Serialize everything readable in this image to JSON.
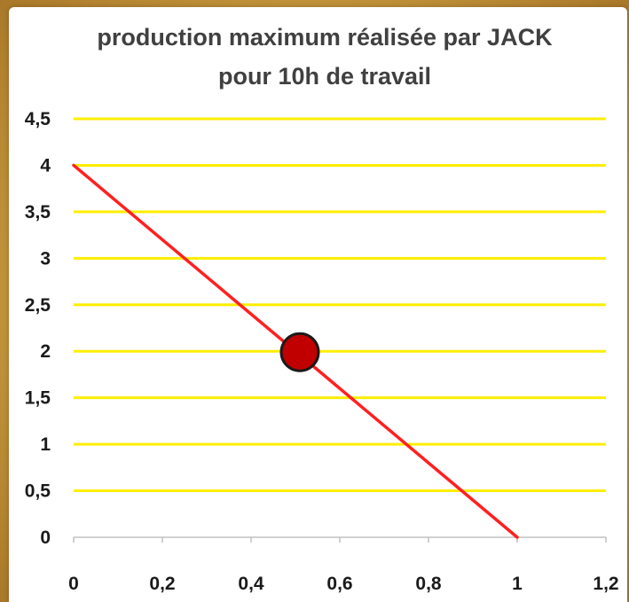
{
  "chart_data": {
    "type": "line",
    "title": "production maximum réalisée par JACK",
    "subtitle": "pour 10h de travail",
    "xlabel": "",
    "ylabel": "",
    "xlim": [
      0,
      1.2
    ],
    "ylim": [
      0,
      4.5
    ],
    "x_ticks": [
      "0",
      "0,2",
      "0,4",
      "0,6",
      "0,8",
      "1",
      "1,2"
    ],
    "x_tick_values": [
      0,
      0.2,
      0.4,
      0.6,
      0.8,
      1,
      1.2
    ],
    "y_ticks": [
      "0",
      "0,5",
      "1",
      "1,5",
      "2",
      "2,5",
      "3",
      "3,5",
      "4",
      "4,5"
    ],
    "y_tick_values": [
      0,
      0.5,
      1,
      1.5,
      2,
      2.5,
      3,
      3.5,
      4,
      4.5
    ],
    "grid": "horizontal",
    "legend": "none",
    "series": [
      {
        "x": [
          0,
          1
        ],
        "y": [
          4,
          0
        ]
      }
    ],
    "highlight_point": {
      "x": 0.51,
      "y": 1.99
    },
    "colors": {
      "gridline": "#ffee00",
      "line": "#ff2020",
      "marker_fill": "#c00000",
      "marker_stroke": "#1a1a1a",
      "axis": "#c0c0c0"
    }
  }
}
